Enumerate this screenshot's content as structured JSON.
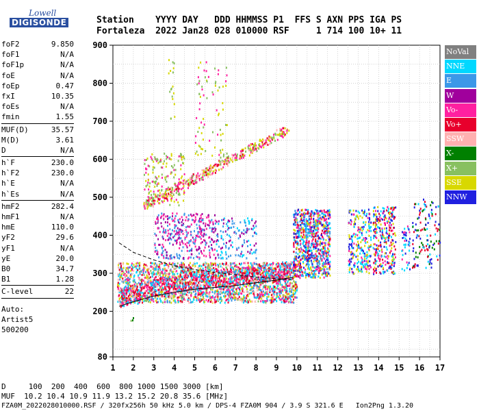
{
  "logo": {
    "line1": "Lowell",
    "line2": "DIGISONDE"
  },
  "header": {
    "line1": "Station    YYYY DAY   DDD HHMMSS P1  FFS S AXN PPS IGA PS",
    "line2": "Fortaleza  2022 Jan28 028 010000 RSF     1 714 100 10+ 11"
  },
  "params": {
    "group1": [
      {
        "name": "foF2",
        "value": "9.850"
      },
      {
        "name": "foF1",
        "value": "N/A"
      },
      {
        "name": "foF1p",
        "value": "N/A"
      },
      {
        "name": "foE",
        "value": "N/A"
      },
      {
        "name": "foEp",
        "value": "0.47"
      },
      {
        "name": "fxI",
        "value": "10.35"
      },
      {
        "name": "foEs",
        "value": "N/A"
      },
      {
        "name": "fmin",
        "value": "1.55"
      }
    ],
    "group2": [
      {
        "name": "MUF(D)",
        "value": "35.57"
      },
      {
        "name": "M(D)",
        "value": "3.61"
      },
      {
        "name": "D",
        "value": "N/A"
      }
    ],
    "group3": [
      {
        "name": "h`F",
        "value": "230.0"
      },
      {
        "name": "h`F2",
        "value": "230.0"
      },
      {
        "name": "h`E",
        "value": "N/A"
      },
      {
        "name": "h`Es",
        "value": "N/A"
      }
    ],
    "group4": [
      {
        "name": "hmF2",
        "value": "282.4"
      },
      {
        "name": "hmF1",
        "value": "N/A"
      },
      {
        "name": "hmE",
        "value": "110.0"
      },
      {
        "name": "yF2",
        "value": "29.6"
      },
      {
        "name": "yF1",
        "value": "N/A"
      },
      {
        "name": "yE",
        "value": "20.0"
      },
      {
        "name": "B0",
        "value": "34.7"
      },
      {
        "name": "B1",
        "value": "1.28"
      }
    ],
    "group5": [
      {
        "name": "C-level",
        "value": "22"
      }
    ],
    "auto_lines": [
      "Auto:",
      "Artist5",
      "500200"
    ]
  },
  "legend": [
    {
      "label": "NoVal",
      "color": "#808080"
    },
    {
      "label": "NNE",
      "color": "#00d8ff"
    },
    {
      "label": "E",
      "color": "#3c98e8"
    },
    {
      "label": "W",
      "color": "#a0009c"
    },
    {
      "label": "Vo-",
      "color": "#ff20a0"
    },
    {
      "label": "Vo+",
      "color": "#e8002c"
    },
    {
      "label": "SSW",
      "color": "#ffb0b0"
    },
    {
      "label": "X-",
      "color": "#008000"
    },
    {
      "label": "X+",
      "color": "#88c060"
    },
    {
      "label": "SSE",
      "color": "#d8d800"
    },
    {
      "label": "NNW",
      "color": "#2020e0"
    }
  ],
  "footer": {
    "line1": "D     100  200  400  600  800 1000 1500 3000 [km]",
    "line2": "MUF  10.2 10.4 10.9 11.9 13.2 15.2 20.8 35.6 [MHz]",
    "line3": "FZA0M_2022028010000.RSF / 320fx256h 50 kHz 5.0 km / DPS-4 FZA0M 904 / 3.9 S 321.6 E   Ion2Png 1.3.20"
  },
  "chart_data": {
    "type": "scatter",
    "xlim": [
      1,
      17
    ],
    "ylim": [
      80,
      900
    ],
    "x_ticks": [
      1,
      2,
      3,
      4,
      5,
      6,
      7,
      8,
      9,
      10,
      11,
      12,
      13,
      14,
      15,
      16,
      17
    ],
    "y_ticks": [
      80,
      200,
      300,
      400,
      500,
      600,
      700,
      800,
      900
    ],
    "grid": true,
    "trace": {
      "name": "h`F2 trace",
      "x": [
        1.3,
        2.0,
        3.0,
        4.0,
        5.0,
        6.0,
        7.0,
        8.0,
        9.0,
        9.8
      ],
      "y": [
        213,
        225,
        240,
        250,
        258,
        263,
        268,
        275,
        282,
        289
      ]
    },
    "profile": {
      "name": "electron density profile",
      "x": [
        1.3,
        2.0,
        3.0,
        4.0,
        5.0,
        6.0,
        7.0,
        8.0,
        9.0,
        9.85
      ],
      "y": [
        380,
        355,
        335,
        320,
        310,
        302,
        296,
        290,
        286,
        282
      ]
    },
    "clusters": [
      {
        "x": [
          1.2,
          10.0
        ],
        "y": [
          225,
          330
        ],
        "dens": 14,
        "palette": [
          5,
          4,
          1,
          2,
          6,
          8,
          9
        ]
      },
      {
        "x": [
          9.8,
          11.6
        ],
        "y": [
          290,
          470
        ],
        "dens": 16,
        "palette": [
          10,
          5,
          1,
          4,
          9,
          2
        ]
      },
      {
        "x": [
          12.5,
          13.6
        ],
        "y": [
          300,
          470
        ],
        "dens": 8,
        "palette": [
          10,
          1,
          4,
          9
        ]
      },
      {
        "x": [
          13.7,
          14.8
        ],
        "y": [
          300,
          480
        ],
        "dens": 9,
        "palette": [
          10,
          1,
          4,
          9,
          5
        ]
      },
      {
        "x": [
          15.1,
          15.5
        ],
        "y": [
          310,
          430
        ],
        "dens": 5,
        "palette": [
          10,
          1,
          4
        ]
      },
      {
        "x": [
          15.6,
          17.0
        ],
        "y": [
          315,
          500
        ],
        "dens": 3,
        "palette": [
          7,
          10,
          1,
          5
        ]
      },
      {
        "x": [
          3.0,
          6.0
        ],
        "y": [
          340,
          460
        ],
        "dens": 6,
        "palette": [
          3,
          4,
          2
        ]
      },
      {
        "x": [
          2.5,
          4.5
        ],
        "y": [
          480,
          620
        ],
        "dens": 4,
        "palette": [
          9,
          8,
          4
        ]
      },
      {
        "x": [
          3.7,
          4.0
        ],
        "y": [
          700,
          880
        ],
        "dens": 2,
        "palette": [
          9,
          8
        ]
      },
      {
        "x": [
          5.0,
          6.6
        ],
        "y": [
          600,
          860
        ],
        "dens": 1.2,
        "palette": [
          9,
          8,
          4
        ]
      },
      {
        "x": [
          6.0,
          8.0
        ],
        "y": [
          340,
          450
        ],
        "dens": 4,
        "palette": [
          3,
          2,
          1
        ]
      },
      {
        "x": [
          1.8,
          2.2
        ],
        "y": [
          170,
          185
        ],
        "dens": 3,
        "palette": [
          7,
          8
        ]
      },
      {
        "x": [
          2.0,
          2.3
        ],
        "y": [
          218,
          230
        ],
        "dens": 3,
        "palette": [
          1,
          2
        ]
      }
    ],
    "echo_bands": [
      {
        "x": [
          2.5,
          9.5
        ],
        "y": [
          480,
          680
        ],
        "width": 14,
        "palette": [
          5,
          4,
          9,
          8,
          6
        ]
      }
    ]
  }
}
